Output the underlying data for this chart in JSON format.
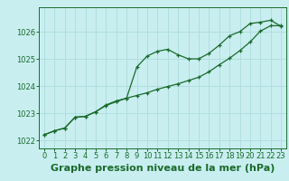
{
  "title": "",
  "xlabel": "Graphe pression niveau de la mer (hPa)",
  "ylabel": "",
  "background_color": "#c8eef0",
  "grid_color": "#b0dede",
  "line_color": "#1a6b2a",
  "xlim": [
    -0.5,
    23.5
  ],
  "ylim": [
    1021.7,
    1026.9
  ],
  "xticks": [
    0,
    1,
    2,
    3,
    4,
    5,
    6,
    7,
    8,
    9,
    10,
    11,
    12,
    13,
    14,
    15,
    16,
    17,
    18,
    19,
    20,
    21,
    22,
    23
  ],
  "yticks": [
    1022,
    1023,
    1024,
    1025,
    1026
  ],
  "line1_x": [
    0,
    1,
    2,
    3,
    4,
    5,
    6,
    7,
    8,
    9,
    10,
    11,
    12,
    13,
    14,
    15,
    16,
    17,
    18,
    19,
    20,
    21,
    22,
    23
  ],
  "line1_y": [
    1022.2,
    1022.35,
    1022.45,
    1022.85,
    1022.88,
    1023.05,
    1023.3,
    1023.45,
    1023.55,
    1024.7,
    1025.1,
    1025.28,
    1025.35,
    1025.15,
    1025.0,
    1025.0,
    1025.2,
    1025.5,
    1025.85,
    1026.0,
    1026.3,
    1026.35,
    1026.42,
    1026.2
  ],
  "line2_x": [
    0,
    1,
    2,
    3,
    4,
    5,
    6,
    7,
    8,
    9,
    10,
    11,
    12,
    13,
    14,
    15,
    16,
    17,
    18,
    19,
    20,
    21,
    22,
    23
  ],
  "line2_y": [
    1022.2,
    1022.35,
    1022.45,
    1022.85,
    1022.88,
    1023.05,
    1023.28,
    1023.42,
    1023.55,
    1023.65,
    1023.75,
    1023.88,
    1023.98,
    1024.08,
    1024.2,
    1024.32,
    1024.52,
    1024.78,
    1025.02,
    1025.3,
    1025.62,
    1026.02,
    1026.22,
    1026.22
  ],
  "tick_fontsize": 6,
  "xlabel_fontsize": 8,
  "marker": "+"
}
